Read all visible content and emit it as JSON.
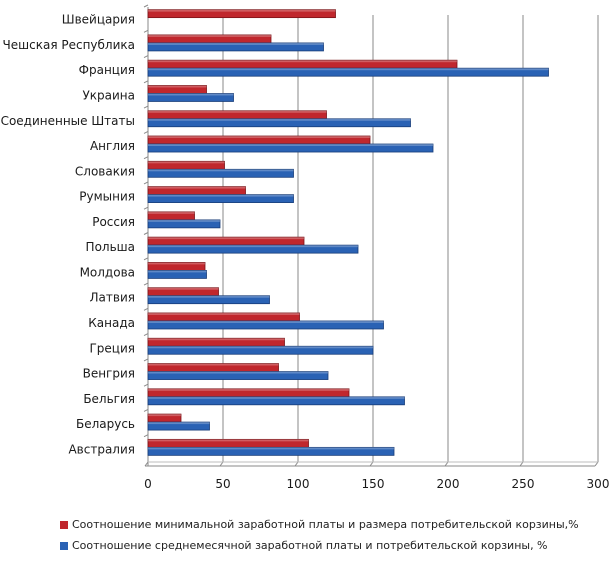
{
  "chart_data": {
    "type": "bar",
    "orientation": "horizontal",
    "title": "",
    "xlabel": "",
    "ylabel": "",
    "xlim": [
      0,
      300
    ],
    "xticks": [
      0,
      50,
      100,
      150,
      200,
      250,
      300
    ],
    "tick_labels": [
      "0",
      "50",
      "100",
      "150",
      "200",
      "250",
      "300"
    ],
    "grid": true,
    "legend_position": "bottom",
    "categories": [
      "Швейцария",
      "Чешская Республика",
      "Франция",
      "Украина",
      "Соединенные Штаты",
      "Англия",
      "Словакия",
      "Румыния",
      "Россия",
      "Польша",
      "Молдова",
      "Латвия",
      "Канада",
      "Греция",
      "Венгрия",
      "Бельгия",
      "Беларусь",
      "Австралия"
    ],
    "series": [
      {
        "name": "Соотношение минимальной заработной платы и размера потребительской корзины,%",
        "color": "#c0272d",
        "values": [
          125,
          82,
          206,
          39,
          119,
          148,
          51,
          65,
          31,
          104,
          38,
          47,
          101,
          91,
          87,
          134,
          22,
          107
        ]
      },
      {
        "name": "Соотношение среднемесячной заработной платы и потребительской корзины, %",
        "color": "#2a62b4",
        "values": [
          null,
          117,
          267,
          57,
          175,
          190,
          97,
          97,
          48,
          140,
          39,
          81,
          157,
          150,
          120,
          171,
          41,
          164
        ]
      }
    ]
  }
}
